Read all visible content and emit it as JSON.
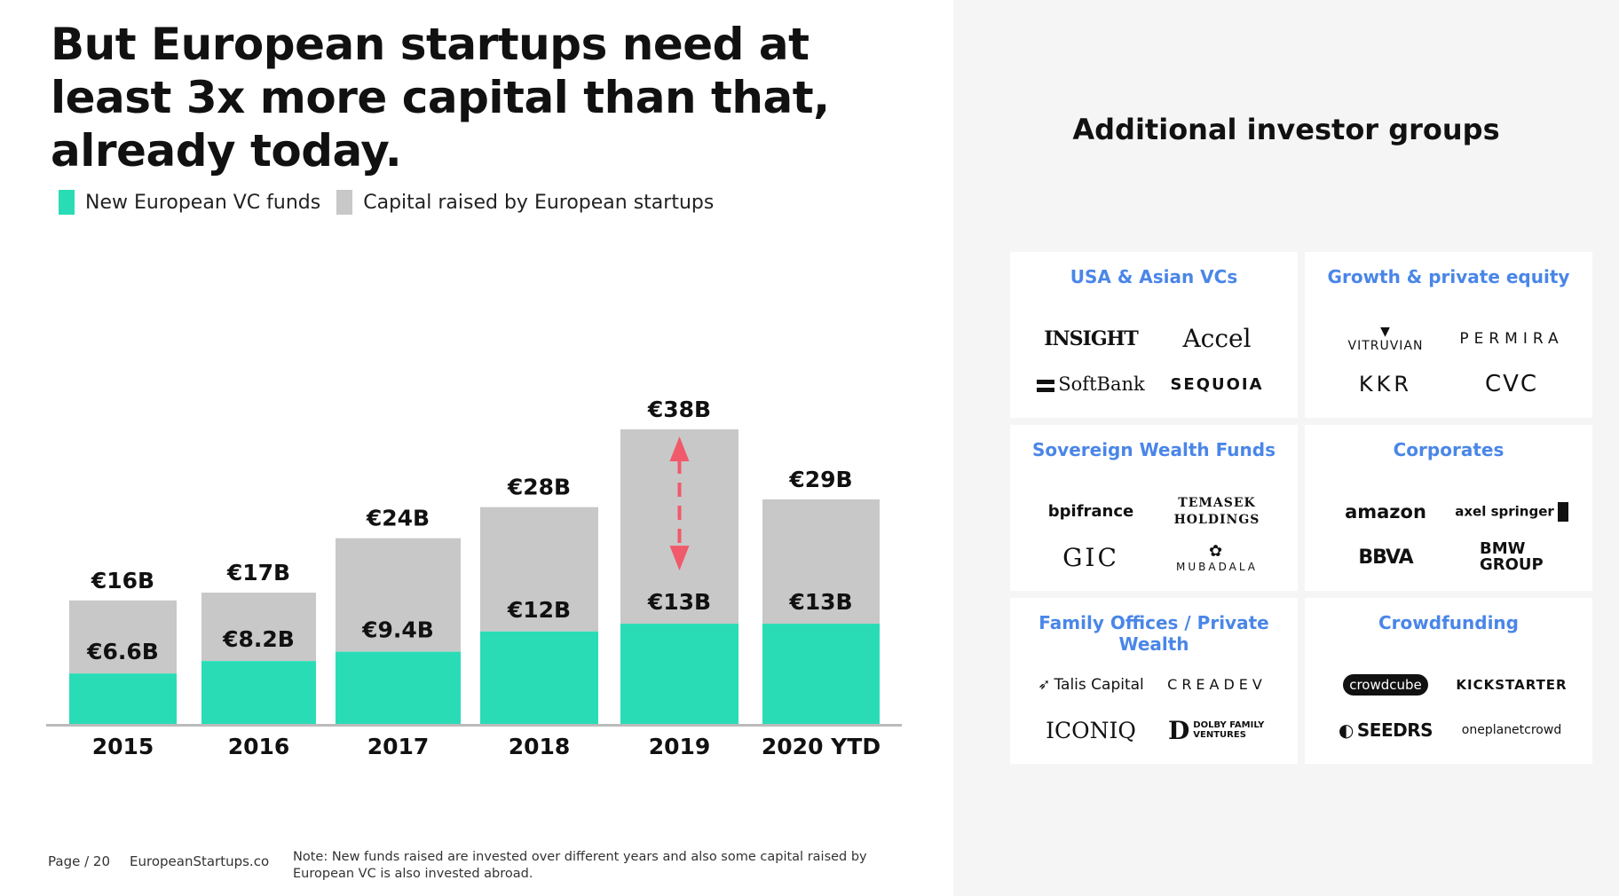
{
  "title": "But European startups need at least 3x more capital than that, already today.",
  "legend": {
    "vc_funds": "New European VC funds",
    "capital_raised": "Capital raised by European startups"
  },
  "colors": {
    "vc_funds": "#29dcb6",
    "capital_raised": "#c8c8c8",
    "arrow": "#f05a6a",
    "accent": "#4a86e8"
  },
  "chart_data": {
    "type": "bar",
    "stacked": true,
    "categories": [
      "2015",
      "2016",
      "2017",
      "2018",
      "2019",
      "2020 YTD"
    ],
    "series": [
      {
        "name": "New European VC funds",
        "values": [
          6.6,
          8.2,
          9.4,
          12,
          13,
          13
        ],
        "labels": [
          "€6.6B",
          "€8.2B",
          "€9.4B",
          "€12B",
          "€13B",
          "€13B"
        ]
      },
      {
        "name": "Capital raised by European startups",
        "totals": [
          16,
          17,
          24,
          28,
          38,
          29
        ],
        "labels": [
          "€16B",
          "€17B",
          "€24B",
          "€28B",
          "€38B",
          "€29B"
        ]
      }
    ],
    "legend_position": "top-left",
    "grid": false,
    "annotation": "double-headed dashed arrow on 2019 bar"
  },
  "right_title": "Additional investor groups",
  "groups": [
    {
      "title": "USA & Asian VCs",
      "logos": [
        "INSIGHT",
        "Accel",
        "SoftBank",
        "SEQUOIA"
      ]
    },
    {
      "title": "Growth & private equity",
      "logos": [
        "VITRUVIAN",
        "PERMIRA",
        "KKR",
        "CVC"
      ]
    },
    {
      "title": "Sovereign Wealth Funds",
      "logos": [
        "bpifrance",
        "TEMASEK HOLDINGS",
        "GIC",
        "MUBADALA"
      ]
    },
    {
      "title": "Corporates",
      "logos": [
        "amazon",
        "axel springer",
        "BBVA",
        "BMW GROUP"
      ]
    },
    {
      "title": "Family Offices / Private Wealth",
      "logos": [
        "Talis Capital",
        "CREADEV",
        "ICONIQ",
        "DOLBY FAMILY VENTURES"
      ]
    },
    {
      "title": "Crowdfunding",
      "logos": [
        "crowdcube",
        "KICKSTARTER",
        "SEEDRS",
        "oneplanetcrowd"
      ]
    }
  ],
  "footer": {
    "page": "Page / 20",
    "site": "EuropeanStartups.co",
    "note": "Note: New funds raised are invested over different years and also some capital raised by European VC is also invested abroad."
  }
}
